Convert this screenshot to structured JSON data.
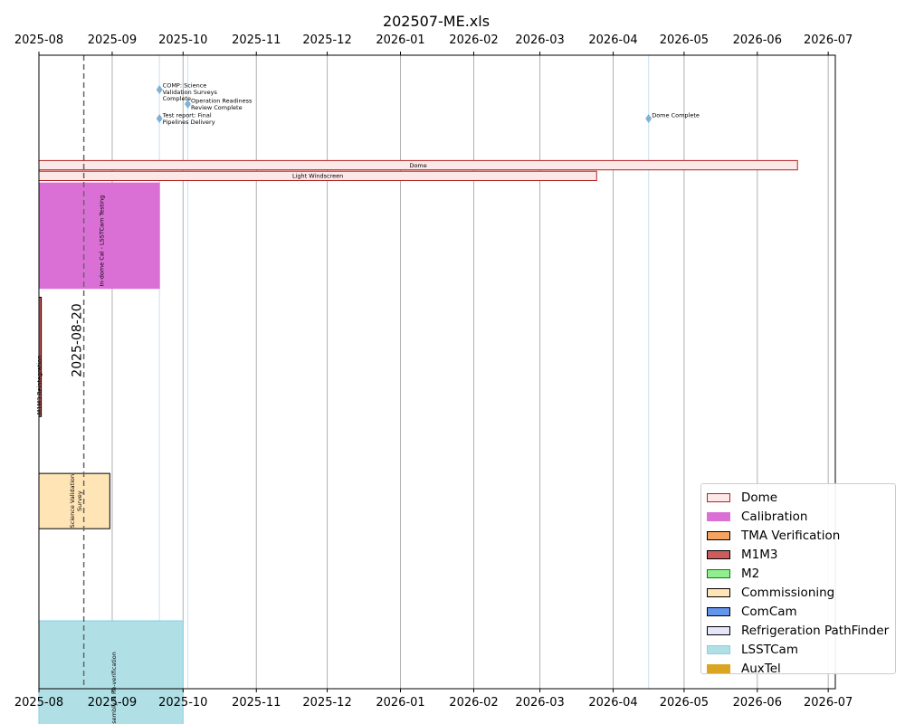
{
  "chart_data": {
    "type": "gantt",
    "title": "202507-ME.xls",
    "x_axis": {
      "range": [
        "2025-08-01",
        "2026-07-04"
      ],
      "ticks": [
        "2025-08-01",
        "2025-09-01",
        "2025-10-01",
        "2025-11-01",
        "2025-12-01",
        "2026-01-01",
        "2026-02-01",
        "2026-03-01",
        "2026-04-01",
        "2026-05-01",
        "2026-06-01",
        "2026-07-01"
      ],
      "tick_labels": [
        "2025-08",
        "2025-09",
        "2025-10",
        "2025-11",
        "2025-12",
        "2026-01",
        "2026-02",
        "2026-03",
        "2026-04",
        "2026-05",
        "2026-06",
        "2026-07"
      ],
      "position": "top and bottom",
      "grid": true
    },
    "today_marker": {
      "date": "2025-08-20",
      "label": "2025-08-20"
    },
    "milestones": [
      {
        "label": "COMP: Science Validation Surveys Complete",
        "lines": [
          "COMP: Science",
          "Validation Surveys",
          "Complete"
        ],
        "date": "2025-09-21",
        "row": 0
      },
      {
        "label": "Operation Readiness Review Complete",
        "lines": [
          "Operation Readiness",
          "Review Complete"
        ],
        "date": "2025-10-03",
        "row": 1
      },
      {
        "label": "Test report: Final Pipelines Delivery",
        "lines": [
          "Test report: Final",
          "Pipelines Delivery"
        ],
        "date": "2025-09-21",
        "row": 2
      },
      {
        "label": "Dome Complete",
        "lines": [
          "Dome Complete"
        ],
        "date": "2026-04-16",
        "row": 2
      }
    ],
    "tasks": [
      {
        "label": "Dome",
        "group": "Dome",
        "start": "2025-08-01",
        "end": "2026-06-18",
        "lane": 3,
        "span": 1,
        "text_orientation": "horizontal"
      },
      {
        "label": "Light Windscreen",
        "group": "Dome",
        "start": "2025-08-01",
        "end": "2026-03-25",
        "lane": 4,
        "span": 1,
        "text_orientation": "horizontal"
      },
      {
        "label": "In-dome Cal - LSSTCam Testing",
        "group": "Calibration",
        "start": "2025-08-01",
        "end": "2025-09-21",
        "lane": 5.1,
        "span": 10,
        "text_orientation": "vertical"
      },
      {
        "label": "M1M3 Reintegration",
        "group": "M1M3",
        "start": "2025-08-01",
        "end": "2025-08-02",
        "lane": 15.8,
        "span": 11.3,
        "text_orientation": "vertical"
      },
      {
        "label": "Science Validation Survey",
        "lines": [
          "Science Validation",
          "Survey"
        ],
        "group": "Commissioning",
        "start": "2025-08-01",
        "end": "2025-08-31",
        "lane": 32.3,
        "span": 5.3,
        "text_orientation": "vertical"
      },
      {
        "label": "Assembly & Re-verification",
        "group": "LSSTCam",
        "start": "2025-08-01",
        "end": "2025-10-01",
        "lane": 46.1,
        "span": 10.6,
        "text_orientation": "vertical"
      }
    ],
    "legend": {
      "placement": "bottom-right",
      "entries": [
        {
          "name": "Dome",
          "fill": "#fde8e8",
          "edge": "#b22222"
        },
        {
          "name": "Calibration",
          "fill": "#da70d6",
          "edge": "#da70d6"
        },
        {
          "name": "TMA Verification",
          "fill": "#f4a460",
          "edge": "#000000"
        },
        {
          "name": "M1M3",
          "fill": "#cd5c5c",
          "edge": "#000000"
        },
        {
          "name": "M2",
          "fill": "#90ee90",
          "edge": "#008000"
        },
        {
          "name": "Commissioning",
          "fill": "#ffe4b5",
          "edge": "#000000"
        },
        {
          "name": "ComCam",
          "fill": "#6495ed",
          "edge": "#000000"
        },
        {
          "name": "Refrigeration PathFinder",
          "fill": "#e6e6fa",
          "edge": "#000000"
        },
        {
          "name": "LSSTCam",
          "fill": "#b0e0e6",
          "edge": "#87cee8"
        },
        {
          "name": "AuxTel",
          "fill": "#daa520",
          "edge": "#daa520"
        }
      ]
    },
    "colors": {
      "grid": "#b0b0b0",
      "milestone_marker": "#7fb2d9",
      "milestone_line": "#cfe5f3",
      "today_line": "#666666"
    }
  }
}
